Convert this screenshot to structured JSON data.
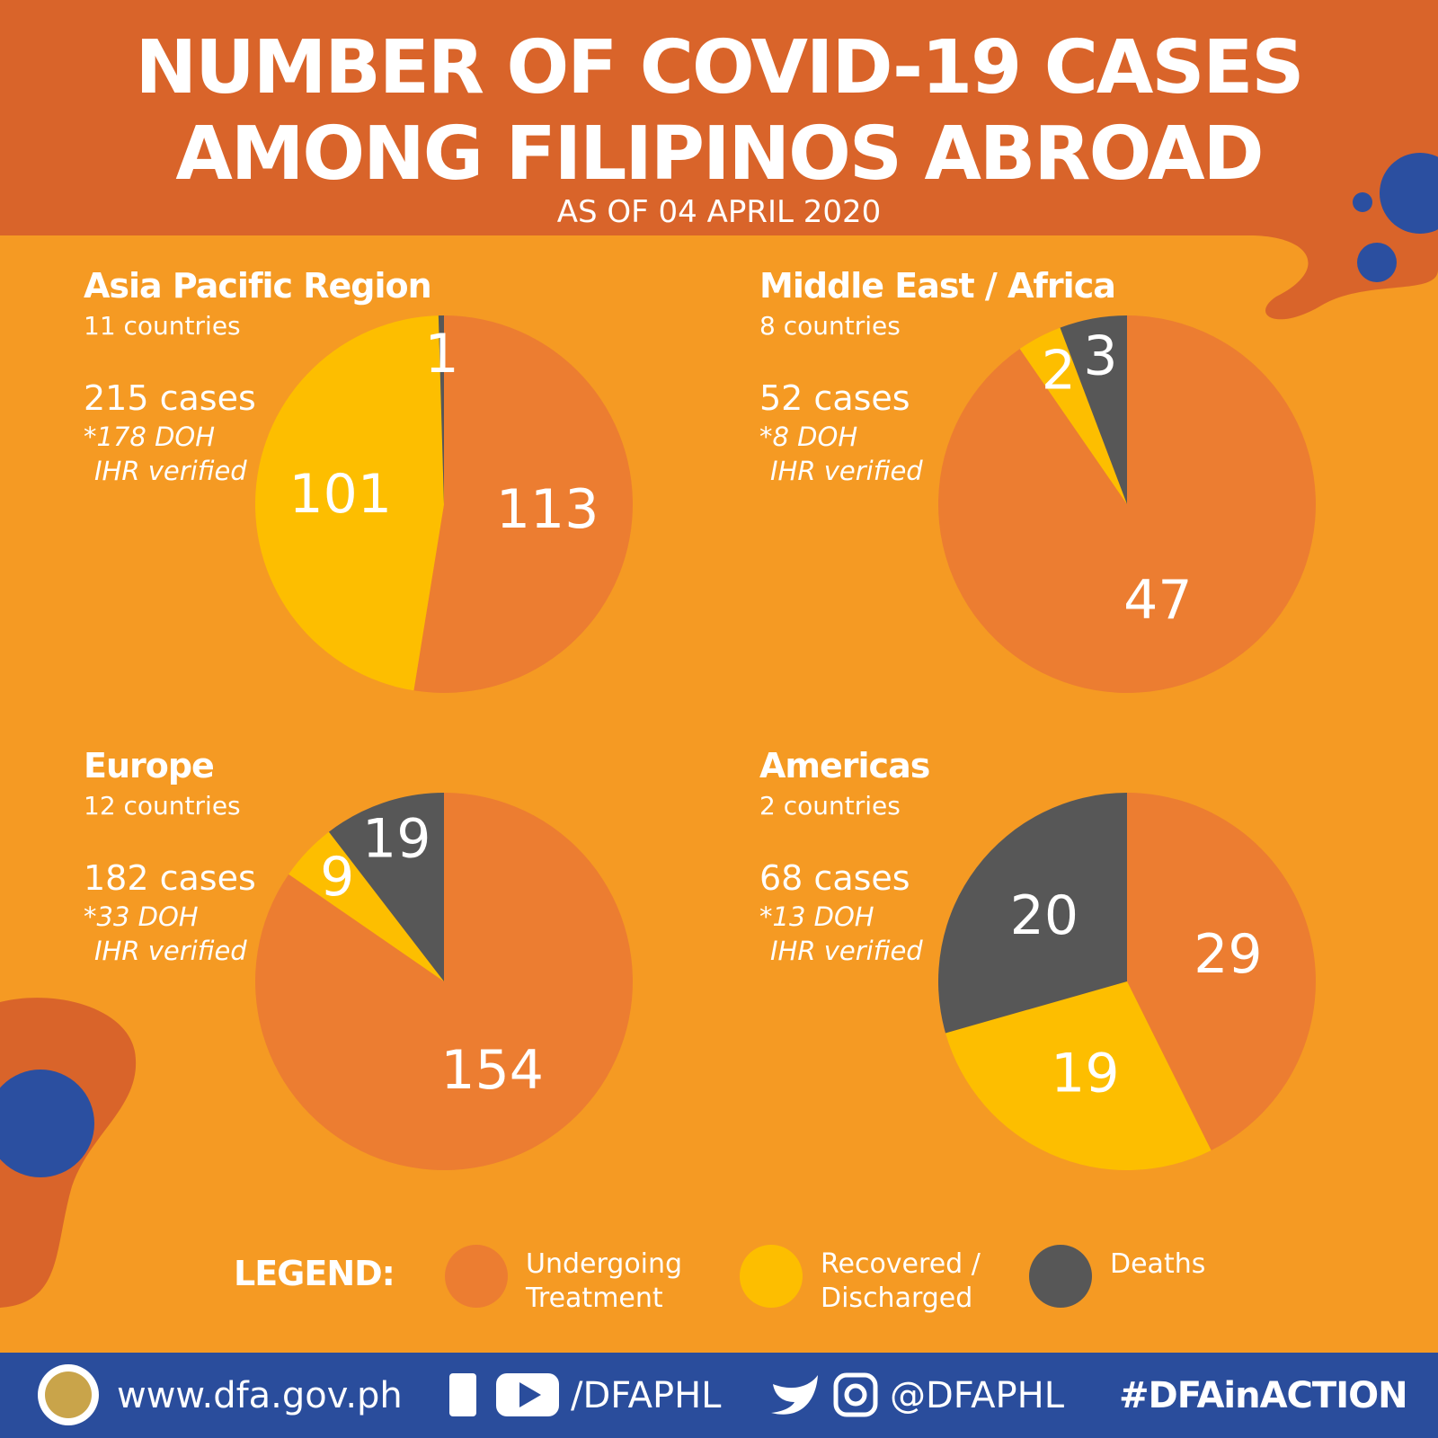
{
  "title_lines": [
    "NUMBER OF COVID-19 CASES",
    "AMONG FILIPINOS ABROAD"
  ],
  "subtitle": "AS OF 04 APRIL 2020",
  "legend": {
    "title": "LEGEND:",
    "categories": [
      "Undergoing Treatment",
      "Recovered / Discharged",
      "Deaths"
    ],
    "colors": [
      "#ec7d31",
      "#fdbe00",
      "#575757"
    ]
  },
  "chart_data": [
    {
      "type": "pie",
      "title": "Asia Pacific Region",
      "subtitle": "11 countries",
      "annotations": [
        "215 cases",
        "*178 DOH",
        "IHR verified"
      ],
      "values": [
        113,
        101,
        1
      ]
    },
    {
      "type": "pie",
      "title": "Middle East / Africa",
      "subtitle": "8 countries",
      "annotations": [
        "52 cases",
        "*8 DOH",
        "IHR verified"
      ],
      "values": [
        47,
        2,
        3
      ]
    },
    {
      "type": "pie",
      "title": "Europe",
      "subtitle": "12 countries",
      "annotations": [
        "182 cases",
        "*33 DOH",
        "IHR verified"
      ],
      "values": [
        154,
        9,
        19
      ]
    },
    {
      "type": "pie",
      "title": "Americas",
      "subtitle": "2 countries",
      "annotations": [
        "68 cases",
        "*13 DOH",
        "IHR verified"
      ],
      "values": [
        29,
        19,
        20
      ]
    }
  ],
  "footer": {
    "website": "www.dfa.gov.ph",
    "facebook_youtube": "/DFAPHL",
    "twitter_instagram": "@DFAPHL",
    "hashtag": "#DFAinACTION"
  }
}
